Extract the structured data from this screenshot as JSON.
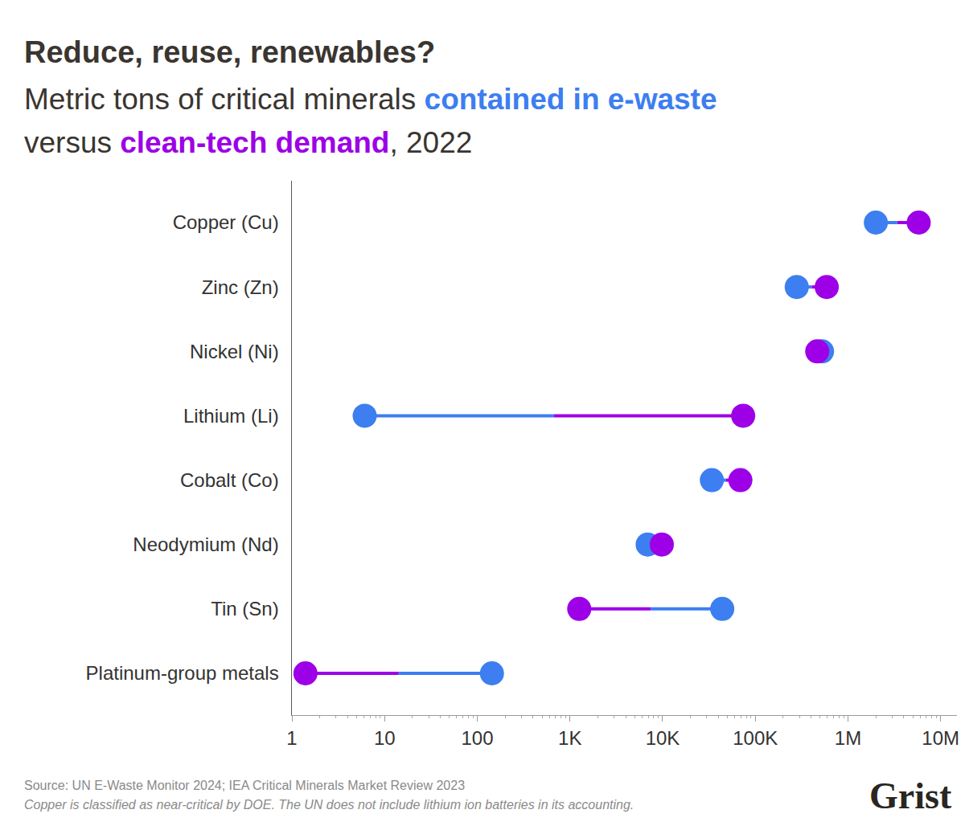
{
  "chart_data": {
    "type": "dumbbell",
    "title": "Reduce, reuse, renewables?",
    "subtitle": [
      "Metric tons of critical minerals contained in e-waste",
      "versus clean-tech demand, 2022"
    ],
    "orientation": "horizontal",
    "categories": [
      "Copper (Cu)",
      "Zinc (Zn)",
      "Nickel (Ni)",
      "Lithium (Li)",
      "Cobalt (Co)",
      "Neodymium (Nd)",
      "Tin (Sn)",
      "Platinum-group metals"
    ],
    "series": [
      {
        "name": "contained in e-waste",
        "color": "#3d7ef0",
        "values": [
          2000000,
          280000,
          525000,
          6.1,
          34000,
          6900,
          44000,
          144
        ]
      },
      {
        "name": "clean-tech demand",
        "color": "#9d00e6",
        "values": [
          5800000,
          590000,
          466000,
          74000,
          69000,
          9800,
          1260,
          1.4
        ]
      }
    ],
    "log": "x",
    "xlim": [
      1,
      15000000
    ],
    "xticks": [
      1,
      10,
      100,
      {
        "value": 1000,
        "label": "1K"
      },
      {
        "value": 10000,
        "label": "10K"
      },
      {
        "value": 100000,
        "label": "100K"
      },
      {
        "value": 1000000,
        "label": "1M"
      },
      {
        "value": 10000000,
        "label": "10M"
      }
    ],
    "grid": false,
    "marker": "circle",
    "source": "Source: UN E-Waste Monitor 2024; IEA Critical Minerals Market Review 2023",
    "note": "Copper is classified as near-critical by DOE. The UN does not include lithium ion batteries in its accounting.",
    "brand": "Grist"
  }
}
